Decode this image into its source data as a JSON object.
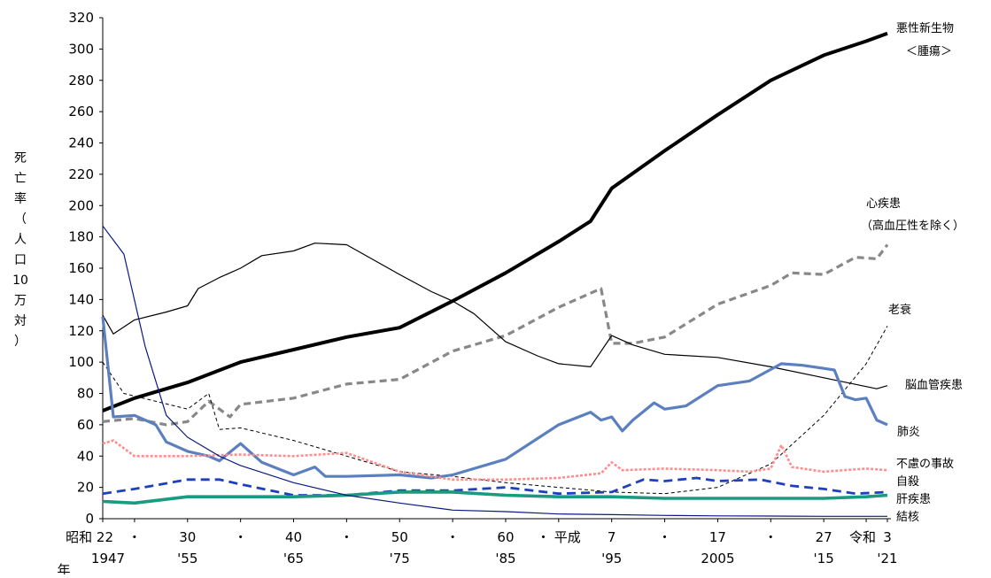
{
  "chart_data": {
    "type": "line",
    "title": "",
    "ylabel": "死亡率（人口10万対）",
    "ylabel_chars": [
      "死",
      "亡",
      "率",
      "（",
      "人",
      "口",
      "10",
      "万",
      "対",
      "）"
    ],
    "ylim": [
      0,
      320
    ],
    "yticks": [
      0,
      20,
      40,
      60,
      80,
      100,
      120,
      140,
      160,
      180,
      200,
      220,
      240,
      260,
      280,
      300,
      320
    ],
    "xlim": [
      1947,
      2021
    ],
    "xlabel": "年",
    "xticks": [
      {
        "x": 1947,
        "top": "昭和 22",
        "bottom": "1947"
      },
      {
        "x": 1950,
        "top": "・",
        "bottom": ""
      },
      {
        "x": 1955,
        "top": "30",
        "bottom": "'55"
      },
      {
        "x": 1960,
        "top": "・",
        "bottom": ""
      },
      {
        "x": 1965,
        "top": "40",
        "bottom": "'65"
      },
      {
        "x": 1970,
        "top": "・",
        "bottom": ""
      },
      {
        "x": 1975,
        "top": "50",
        "bottom": "'75"
      },
      {
        "x": 1980,
        "top": "・",
        "bottom": ""
      },
      {
        "x": 1985,
        "top": "60",
        "bottom": "'85"
      },
      {
        "x": 1990,
        "top": "・ 平成",
        "bottom": ""
      },
      {
        "x": 1995,
        "top": "7",
        "bottom": "'95"
      },
      {
        "x": 2000,
        "top": "・",
        "bottom": ""
      },
      {
        "x": 2005,
        "top": "17",
        "bottom": "2005"
      },
      {
        "x": 2010,
        "top": "・",
        "bottom": ""
      },
      {
        "x": 2015,
        "top": "27",
        "bottom": "'15"
      },
      {
        "x": 2019,
        "top": "令和",
        "bottom": ""
      },
      {
        "x": 2021,
        "top": "3",
        "bottom": "'21"
      }
    ],
    "series": [
      {
        "name": "悪性新生物＜腫瘍＞",
        "label_lines": [
          "悪性新生物",
          "＜腫瘍＞"
        ],
        "color": "#000000",
        "dash": "",
        "points": [
          [
            1947,
            69
          ],
          [
            1950,
            77
          ],
          [
            1955,
            87
          ],
          [
            1960,
            100
          ],
          [
            1965,
            108
          ],
          [
            1970,
            116
          ],
          [
            1975,
            122
          ],
          [
            1980,
            139
          ],
          [
            1985,
            157
          ],
          [
            1990,
            177
          ],
          [
            1993,
            190
          ],
          [
            1995,
            211
          ],
          [
            2000,
            235
          ],
          [
            2005,
            258
          ],
          [
            2010,
            280
          ],
          [
            2015,
            296
          ],
          [
            2019,
            305
          ],
          [
            2021,
            310
          ]
        ]
      },
      {
        "name": "心疾患（高血圧性を除く）",
        "label_lines": [
          "心疾患",
          "（高血圧性を除く）"
        ],
        "color": "#888888",
        "dash": "8,5",
        "points": [
          [
            1947,
            62
          ],
          [
            1950,
            64
          ],
          [
            1953,
            60
          ],
          [
            1955,
            62
          ],
          [
            1957,
            75
          ],
          [
            1959,
            65
          ],
          [
            1960,
            73
          ],
          [
            1965,
            77
          ],
          [
            1970,
            86
          ],
          [
            1975,
            89
          ],
          [
            1980,
            107
          ],
          [
            1985,
            117
          ],
          [
            1990,
            135
          ],
          [
            1994,
            147
          ],
          [
            1995,
            112
          ],
          [
            1997,
            112
          ],
          [
            2000,
            116
          ],
          [
            2005,
            137
          ],
          [
            2010,
            149
          ],
          [
            2012,
            157
          ],
          [
            2015,
            156
          ],
          [
            2018,
            167
          ],
          [
            2020,
            166
          ],
          [
            2021,
            175
          ]
        ]
      },
      {
        "name": "老衰",
        "label_lines": [
          "老衰"
        ],
        "color": "#000000",
        "dash": "4,3",
        "points": [
          [
            1947,
            100
          ],
          [
            1949,
            80
          ],
          [
            1955,
            70
          ],
          [
            1957,
            80
          ],
          [
            1958,
            57
          ],
          [
            1960,
            58
          ],
          [
            1965,
            50
          ],
          [
            1970,
            40
          ],
          [
            1975,
            30
          ],
          [
            1980,
            27
          ],
          [
            1985,
            23
          ],
          [
            1990,
            20
          ],
          [
            1995,
            17
          ],
          [
            2000,
            16
          ],
          [
            2005,
            20
          ],
          [
            2010,
            35
          ],
          [
            2015,
            66
          ],
          [
            2019,
            99
          ],
          [
            2021,
            123
          ]
        ]
      },
      {
        "name": "脳血管疾患",
        "label_lines": [
          "脳血管疾患"
        ],
        "color": "#000000",
        "dash": "",
        "points": [
          [
            1947,
            130
          ],
          [
            1948,
            118
          ],
          [
            1950,
            127
          ],
          [
            1953,
            132
          ],
          [
            1955,
            136
          ],
          [
            1956,
            147
          ],
          [
            1958,
            154
          ],
          [
            1960,
            160
          ],
          [
            1962,
            168
          ],
          [
            1965,
            171
          ],
          [
            1967,
            176
          ],
          [
            1970,
            175
          ],
          [
            1975,
            156
          ],
          [
            1978,
            145
          ],
          [
            1980,
            139
          ],
          [
            1982,
            131
          ],
          [
            1985,
            113
          ],
          [
            1988,
            104
          ],
          [
            1990,
            99
          ],
          [
            1993,
            97
          ],
          [
            1995,
            117
          ],
          [
            1997,
            111
          ],
          [
            2000,
            105
          ],
          [
            2005,
            103
          ],
          [
            2010,
            97
          ],
          [
            2015,
            90
          ],
          [
            2020,
            83
          ],
          [
            2021,
            85
          ]
        ]
      },
      {
        "name": "肺炎",
        "label_lines": [
          "肺炎"
        ],
        "color": "#5b7fbf",
        "dash": "",
        "points": [
          [
            1947,
            129
          ],
          [
            1948,
            65
          ],
          [
            1950,
            66
          ],
          [
            1952,
            60
          ],
          [
            1953,
            49
          ],
          [
            1955,
            43
          ],
          [
            1957,
            40
          ],
          [
            1958,
            37
          ],
          [
            1960,
            48
          ],
          [
            1962,
            36
          ],
          [
            1965,
            28
          ],
          [
            1967,
            33
          ],
          [
            1968,
            27
          ],
          [
            1970,
            27
          ],
          [
            1975,
            28
          ],
          [
            1978,
            26
          ],
          [
            1980,
            28
          ],
          [
            1982,
            32
          ],
          [
            1985,
            38
          ],
          [
            1990,
            60
          ],
          [
            1993,
            68
          ],
          [
            1994,
            63
          ],
          [
            1995,
            65
          ],
          [
            1996,
            56
          ],
          [
            1997,
            63
          ],
          [
            1999,
            74
          ],
          [
            2000,
            70
          ],
          [
            2002,
            72
          ],
          [
            2005,
            85
          ],
          [
            2008,
            88
          ],
          [
            2011,
            99
          ],
          [
            2013,
            98
          ],
          [
            2015,
            96
          ],
          [
            2016,
            95
          ],
          [
            2017,
            78
          ],
          [
            2018,
            76
          ],
          [
            2019,
            77
          ],
          [
            2020,
            63
          ],
          [
            2021,
            60
          ]
        ]
      },
      {
        "name": "不慮の事故",
        "label_lines": [
          "不慮の事故"
        ],
        "color": "#ff8c8c",
        "dash": "3,2",
        "points": [
          [
            1947,
            48
          ],
          [
            1948,
            50
          ],
          [
            1950,
            40
          ],
          [
            1955,
            40
          ],
          [
            1960,
            41
          ],
          [
            1965,
            40
          ],
          [
            1970,
            42
          ],
          [
            1975,
            30
          ],
          [
            1980,
            25
          ],
          [
            1985,
            25
          ],
          [
            1990,
            26
          ],
          [
            1994,
            29
          ],
          [
            1995,
            36
          ],
          [
            1996,
            31
          ],
          [
            2000,
            32
          ],
          [
            2005,
            31
          ],
          [
            2008,
            30
          ],
          [
            2010,
            32
          ],
          [
            2011,
            47
          ],
          [
            2012,
            33
          ],
          [
            2015,
            30
          ],
          [
            2019,
            32
          ],
          [
            2021,
            31
          ]
        ]
      },
      {
        "name": "自殺",
        "label_lines": [
          "自殺"
        ],
        "color": "#1f3fbf",
        "dash": "10,6",
        "points": [
          [
            1947,
            16
          ],
          [
            1950,
            19
          ],
          [
            1955,
            25
          ],
          [
            1958,
            25
          ],
          [
            1960,
            22
          ],
          [
            1965,
            15
          ],
          [
            1970,
            15
          ],
          [
            1975,
            18
          ],
          [
            1980,
            18
          ],
          [
            1985,
            20
          ],
          [
            1990,
            16
          ],
          [
            1995,
            17
          ],
          [
            1998,
            25
          ],
          [
            2000,
            24
          ],
          [
            2003,
            26
          ],
          [
            2005,
            24
          ],
          [
            2009,
            25
          ],
          [
            2012,
            21
          ],
          [
            2015,
            19
          ],
          [
            2018,
            16
          ],
          [
            2021,
            17
          ]
        ]
      },
      {
        "name": "肝疾患",
        "label_lines": [
          "肝疾患"
        ],
        "color": "#1a9a80",
        "dash": "",
        "points": [
          [
            1947,
            11
          ],
          [
            1950,
            10
          ],
          [
            1955,
            14
          ],
          [
            1960,
            14
          ],
          [
            1965,
            14
          ],
          [
            1970,
            15
          ],
          [
            1975,
            17
          ],
          [
            1980,
            17
          ],
          [
            1985,
            15
          ],
          [
            1990,
            14
          ],
          [
            1995,
            14
          ],
          [
            2000,
            13
          ],
          [
            2005,
            13
          ],
          [
            2010,
            13
          ],
          [
            2015,
            13
          ],
          [
            2019,
            14
          ],
          [
            2021,
            15
          ]
        ]
      },
      {
        "name": "結核",
        "label_lines": [
          "結核"
        ],
        "color": "#0a1a80",
        "dash": "",
        "points": [
          [
            1947,
            187
          ],
          [
            1949,
            169
          ],
          [
            1951,
            110
          ],
          [
            1953,
            66
          ],
          [
            1955,
            52
          ],
          [
            1958,
            40
          ],
          [
            1960,
            34
          ],
          [
            1965,
            23
          ],
          [
            1970,
            15
          ],
          [
            1975,
            10
          ],
          [
            1980,
            5.5
          ],
          [
            1985,
            4.5
          ],
          [
            1990,
            3
          ],
          [
            1995,
            2.6
          ],
          [
            2000,
            2.1
          ],
          [
            2005,
            1.8
          ],
          [
            2010,
            1.7
          ],
          [
            2015,
            1.5
          ],
          [
            2021,
            1.5
          ]
        ]
      }
    ]
  }
}
